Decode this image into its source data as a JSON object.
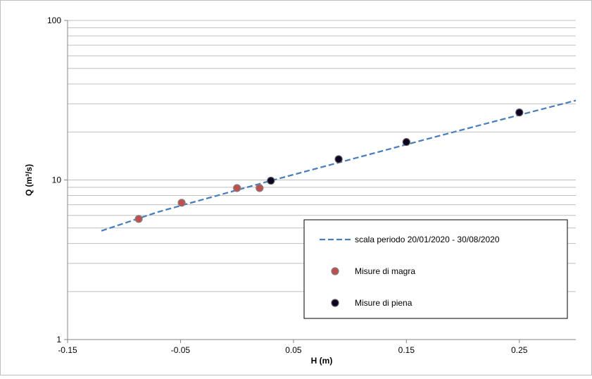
{
  "chart_data": {
    "type": "scatter",
    "title": "",
    "xlabel": "H (m)",
    "ylabel": "Q (m³/s)",
    "xlim": [
      -0.15,
      0.3
    ],
    "ylim": [
      1,
      100
    ],
    "y_scale": "log",
    "grid": "horizontal major and minor",
    "legend_position": "bottom-right",
    "x_ticks": [
      "-0.15",
      "-0.05",
      "0.05",
      "0.15",
      "0.25"
    ],
    "y_ticks": [
      "1",
      "10",
      "100"
    ],
    "series": [
      {
        "name": "scala periodo 20/01/2020 - 30/08/2020",
        "kind": "dashed-line",
        "color": "#4a7ebb",
        "x": [
          -0.12,
          -0.07,
          -0.02,
          0.03,
          0.08,
          0.13,
          0.18,
          0.23,
          0.3
        ],
        "y": [
          4.8,
          6.3,
          7.9,
          9.9,
          12.3,
          15.3,
          19.0,
          23.5,
          31.5
        ]
      },
      {
        "name": "Misure di magra",
        "kind": "markers",
        "fill": "#c0504d",
        "stroke": "#7f7f7f",
        "x": [
          -0.087,
          -0.049,
          0.0,
          0.02
        ],
        "y": [
          5.7,
          7.2,
          8.9,
          8.9
        ]
      },
      {
        "name": "Misure di piena",
        "kind": "markers",
        "fill": "#0d0221",
        "stroke": "#595959",
        "x": [
          0.03,
          0.09,
          0.15,
          0.25
        ],
        "y": [
          9.9,
          13.5,
          17.3,
          26.5
        ]
      }
    ]
  }
}
